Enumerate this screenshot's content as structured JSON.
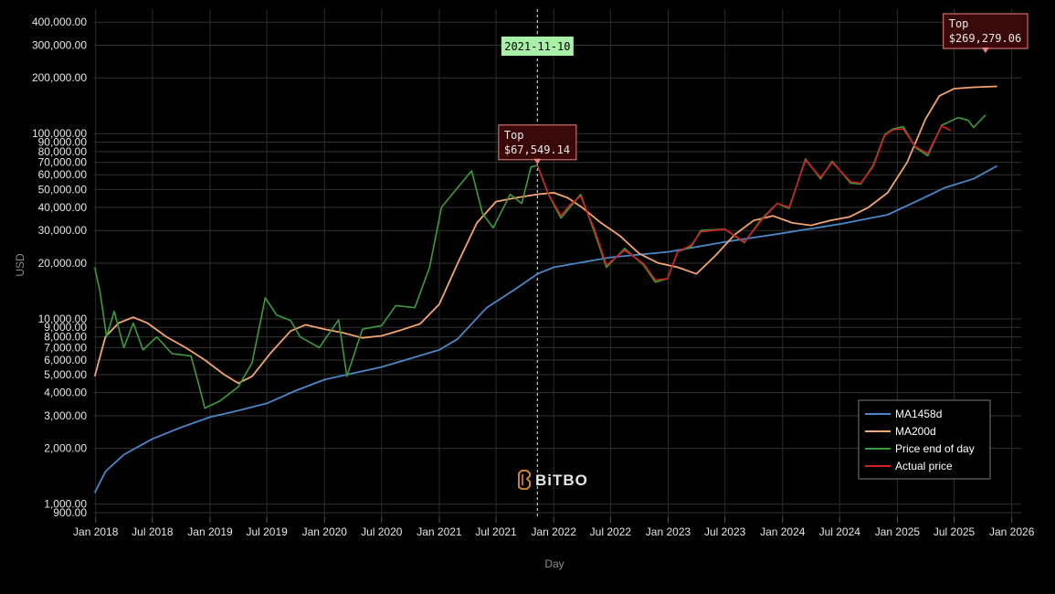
{
  "chart_data": {
    "type": "line",
    "xlabel": "Day",
    "ylabel": "USD",
    "yscale": "log",
    "ylim": [
      850,
      470000
    ],
    "xlim": [
      "2017-12-27",
      "2026-01-31"
    ],
    "grid": true,
    "legend_position": "bottom-right",
    "y_ticks": [
      900,
      1000,
      2000,
      3000,
      4000,
      5000,
      6000,
      7000,
      8000,
      9000,
      10000,
      20000,
      30000,
      40000,
      50000,
      60000,
      70000,
      80000,
      90000,
      100000,
      200000,
      300000,
      400000
    ],
    "y_tick_labels": [
      "900.00",
      "1,000.00",
      "2,000.00",
      "3,000.00",
      "4,000.00",
      "5,000.00",
      "6,000.00",
      "7,000.00",
      "8,000.00",
      "9,000.00",
      "10,000.00",
      "20,000.00",
      "30,000.00",
      "40,000.00",
      "50,000.00",
      "60,000.00",
      "70,000.00",
      "80,000.00",
      "90,000.00",
      "100,000.00",
      "200,000.00",
      "300,000.00",
      "400,000.00"
    ],
    "x_ticks": [
      "2018-01-01",
      "2018-07-01",
      "2019-01-01",
      "2019-07-01",
      "2020-01-01",
      "2020-07-01",
      "2021-01-01",
      "2021-07-01",
      "2022-01-01",
      "2022-07-01",
      "2023-01-01",
      "2023-07-01",
      "2024-01-01",
      "2024-07-01",
      "2025-01-01",
      "2025-07-01",
      "2026-01-01"
    ],
    "x_tick_labels": [
      "Jan 2018",
      "Jul 2018",
      "Jan 2019",
      "Jul 2019",
      "Jan 2020",
      "Jul 2020",
      "Jan 2021",
      "Jul 2021",
      "Jan 2022",
      "Jul 2022",
      "Jan 2023",
      "Jul 2023",
      "Jan 2024",
      "Jul 2024",
      "Jan 2025",
      "Jul 2025",
      "Jan 2026"
    ],
    "crosshair_date": "2021-11-10",
    "annotations": [
      {
        "label": "Top",
        "value": "$67,549.14",
        "x": "2021-11-10",
        "y": 67549
      },
      {
        "label": "Top",
        "value": "$269,279.06",
        "x": "2025-10-09",
        "y": 269279
      }
    ],
    "series": [
      {
        "name": "MA1458d",
        "color": "#4b87c8",
        "points": [
          [
            "2017-12-29",
            1150
          ],
          [
            "2018-02-01",
            1500
          ],
          [
            "2018-04-01",
            1850
          ],
          [
            "2018-07-01",
            2250
          ],
          [
            "2018-10-01",
            2600
          ],
          [
            "2019-01-01",
            2950
          ],
          [
            "2019-04-01",
            3200
          ],
          [
            "2019-07-01",
            3500
          ],
          [
            "2019-10-01",
            4100
          ],
          [
            "2020-01-01",
            4700
          ],
          [
            "2020-07-01",
            5500
          ],
          [
            "2021-01-01",
            6800
          ],
          [
            "2021-03-01",
            7800
          ],
          [
            "2021-06-01",
            11500
          ],
          [
            "2021-09-01",
            14500
          ],
          [
            "2021-11-10",
            17500
          ],
          [
            "2022-01-01",
            19000
          ],
          [
            "2022-07-01",
            21500
          ],
          [
            "2023-01-01",
            23000
          ],
          [
            "2023-07-01",
            26000
          ],
          [
            "2024-01-01",
            29000
          ],
          [
            "2024-07-01",
            32500
          ],
          [
            "2024-12-01",
            36500
          ],
          [
            "2025-03-01",
            43000
          ],
          [
            "2025-06-01",
            51000
          ],
          [
            "2025-09-01",
            57000
          ],
          [
            "2025-11-15",
            67000
          ]
        ]
      },
      {
        "name": "MA200d",
        "color": "#f4a46e",
        "points": [
          [
            "2017-12-29",
            4900
          ],
          [
            "2018-02-01",
            8000
          ],
          [
            "2018-03-15",
            9500
          ],
          [
            "2018-05-01",
            10200
          ],
          [
            "2018-06-15",
            9500
          ],
          [
            "2018-08-15",
            8000
          ],
          [
            "2018-10-15",
            7000
          ],
          [
            "2018-12-15",
            6000
          ],
          [
            "2019-02-15",
            5000
          ],
          [
            "2019-04-01",
            4500
          ],
          [
            "2019-05-15",
            4900
          ],
          [
            "2019-07-15",
            6600
          ],
          [
            "2019-09-15",
            8600
          ],
          [
            "2019-11-01",
            9300
          ],
          [
            "2020-01-01",
            8800
          ],
          [
            "2020-03-01",
            8400
          ],
          [
            "2020-05-01",
            7900
          ],
          [
            "2020-07-01",
            8100
          ],
          [
            "2020-09-01",
            8700
          ],
          [
            "2020-11-01",
            9400
          ],
          [
            "2021-01-01",
            12000
          ],
          [
            "2021-03-01",
            20000
          ],
          [
            "2021-05-01",
            33000
          ],
          [
            "2021-07-01",
            43000
          ],
          [
            "2021-09-01",
            45000
          ],
          [
            "2021-11-10",
            47000
          ],
          [
            "2022-01-01",
            48000
          ],
          [
            "2022-02-15",
            45000
          ],
          [
            "2022-04-01",
            40000
          ],
          [
            "2022-06-01",
            33000
          ],
          [
            "2022-08-01",
            28000
          ],
          [
            "2022-10-01",
            22500
          ],
          [
            "2022-12-01",
            20000
          ],
          [
            "2023-02-01",
            19000
          ],
          [
            "2023-04-01",
            17500
          ],
          [
            "2023-06-01",
            22000
          ],
          [
            "2023-08-01",
            28500
          ],
          [
            "2023-10-01",
            34000
          ],
          [
            "2023-12-01",
            36000
          ],
          [
            "2024-02-01",
            33000
          ],
          [
            "2024-04-01",
            32000
          ],
          [
            "2024-06-01",
            34000
          ],
          [
            "2024-08-01",
            35500
          ],
          [
            "2024-10-01",
            40000
          ],
          [
            "2024-12-01",
            48000
          ],
          [
            "2025-02-01",
            70000
          ],
          [
            "2025-04-01",
            120000
          ],
          [
            "2025-05-15",
            160000
          ],
          [
            "2025-07-01",
            175000
          ],
          [
            "2025-09-01",
            178000
          ],
          [
            "2025-11-15",
            180000
          ]
        ]
      },
      {
        "name": "Price end of day",
        "color": "#3a9c3a",
        "points": [
          [
            "2017-12-29",
            19000
          ],
          [
            "2018-01-15",
            14000
          ],
          [
            "2018-02-05",
            8000
          ],
          [
            "2018-03-01",
            11000
          ],
          [
            "2018-04-01",
            7000
          ],
          [
            "2018-05-01",
            9500
          ],
          [
            "2018-06-01",
            6800
          ],
          [
            "2018-07-15",
            8000
          ],
          [
            "2018-09-01",
            6500
          ],
          [
            "2018-11-01",
            6300
          ],
          [
            "2018-12-01",
            4100
          ],
          [
            "2018-12-15",
            3300
          ],
          [
            "2019-02-01",
            3600
          ],
          [
            "2019-04-01",
            4300
          ],
          [
            "2019-05-15",
            5800
          ],
          [
            "2019-06-26",
            13000
          ],
          [
            "2019-08-01",
            10500
          ],
          [
            "2019-09-15",
            9800
          ],
          [
            "2019-10-15",
            8000
          ],
          [
            "2019-12-15",
            7000
          ],
          [
            "2020-02-15",
            9900
          ],
          [
            "2020-03-12",
            4900
          ],
          [
            "2020-05-01",
            8800
          ],
          [
            "2020-07-01",
            9200
          ],
          [
            "2020-08-15",
            11800
          ],
          [
            "2020-10-15",
            11500
          ],
          [
            "2020-12-01",
            19000
          ],
          [
            "2021-01-08",
            40000
          ],
          [
            "2021-02-15",
            48000
          ],
          [
            "2021-04-14",
            63000
          ],
          [
            "2021-05-19",
            37000
          ],
          [
            "2021-06-22",
            31000
          ],
          [
            "2021-08-15",
            47000
          ],
          [
            "2021-09-21",
            42000
          ],
          [
            "2021-10-20",
            66000
          ],
          [
            "2021-11-10",
            67500
          ],
          [
            "2021-12-15",
            47000
          ],
          [
            "2022-01-24",
            35000
          ],
          [
            "2022-03-28",
            47000
          ],
          [
            "2022-05-12",
            29000
          ],
          [
            "2022-06-18",
            19000
          ],
          [
            "2022-08-15",
            24000
          ],
          [
            "2022-10-15",
            19500
          ],
          [
            "2022-11-21",
            15800
          ],
          [
            "2022-12-30",
            16500
          ],
          [
            "2023-01-31",
            23000
          ],
          [
            "2023-03-15",
            24500
          ],
          [
            "2023-04-15",
            30000
          ],
          [
            "2023-07-01",
            30500
          ],
          [
            "2023-09-01",
            25800
          ],
          [
            "2023-10-25",
            34500
          ],
          [
            "2023-12-15",
            42000
          ],
          [
            "2024-01-22",
            39500
          ],
          [
            "2024-03-14",
            73000
          ],
          [
            "2024-05-01",
            57000
          ],
          [
            "2024-06-07",
            71000
          ],
          [
            "2024-08-05",
            54000
          ],
          [
            "2024-09-06",
            53500
          ],
          [
            "2024-10-15",
            67000
          ],
          [
            "2024-11-22",
            99000
          ],
          [
            "2024-12-17",
            106000
          ],
          [
            "2025-01-20",
            109000
          ],
          [
            "2025-02-28",
            84000
          ],
          [
            "2025-04-08",
            76000
          ],
          [
            "2025-05-22",
            111000
          ],
          [
            "2025-07-14",
            122000
          ],
          [
            "2025-08-15",
            118000
          ],
          [
            "2025-09-01",
            108000
          ],
          [
            "2025-10-09",
            126000
          ]
        ]
      },
      {
        "name": "Actual price",
        "color": "#d42020",
        "points": [
          [
            "2021-11-10",
            67500
          ],
          [
            "2021-12-15",
            47000
          ],
          [
            "2022-01-24",
            36000
          ],
          [
            "2022-02-20",
            41000
          ],
          [
            "2022-03-28",
            46000
          ],
          [
            "2022-05-12",
            30000
          ],
          [
            "2022-06-18",
            19500
          ],
          [
            "2022-08-15",
            23500
          ],
          [
            "2022-10-15",
            19800
          ],
          [
            "2022-11-21",
            16200
          ],
          [
            "2022-12-30",
            16500
          ],
          [
            "2023-01-31",
            23000
          ],
          [
            "2023-03-15",
            25000
          ],
          [
            "2023-04-15",
            29500
          ],
          [
            "2023-07-01",
            30500
          ],
          [
            "2023-09-01",
            26000
          ],
          [
            "2023-10-25",
            34000
          ],
          [
            "2023-12-15",
            42000
          ],
          [
            "2024-01-22",
            40000
          ],
          [
            "2024-03-14",
            72000
          ],
          [
            "2024-05-01",
            58000
          ],
          [
            "2024-06-07",
            70000
          ],
          [
            "2024-08-05",
            55000
          ],
          [
            "2024-09-06",
            54000
          ],
          [
            "2024-10-15",
            66000
          ],
          [
            "2024-11-22",
            98000
          ],
          [
            "2024-12-17",
            105000
          ],
          [
            "2025-01-20",
            106000
          ],
          [
            "2025-02-28",
            85000
          ],
          [
            "2025-04-08",
            78000
          ],
          [
            "2025-05-22",
            110000
          ],
          [
            "2025-06-20",
            104000
          ]
        ]
      }
    ]
  },
  "watermark": "BiTBO"
}
